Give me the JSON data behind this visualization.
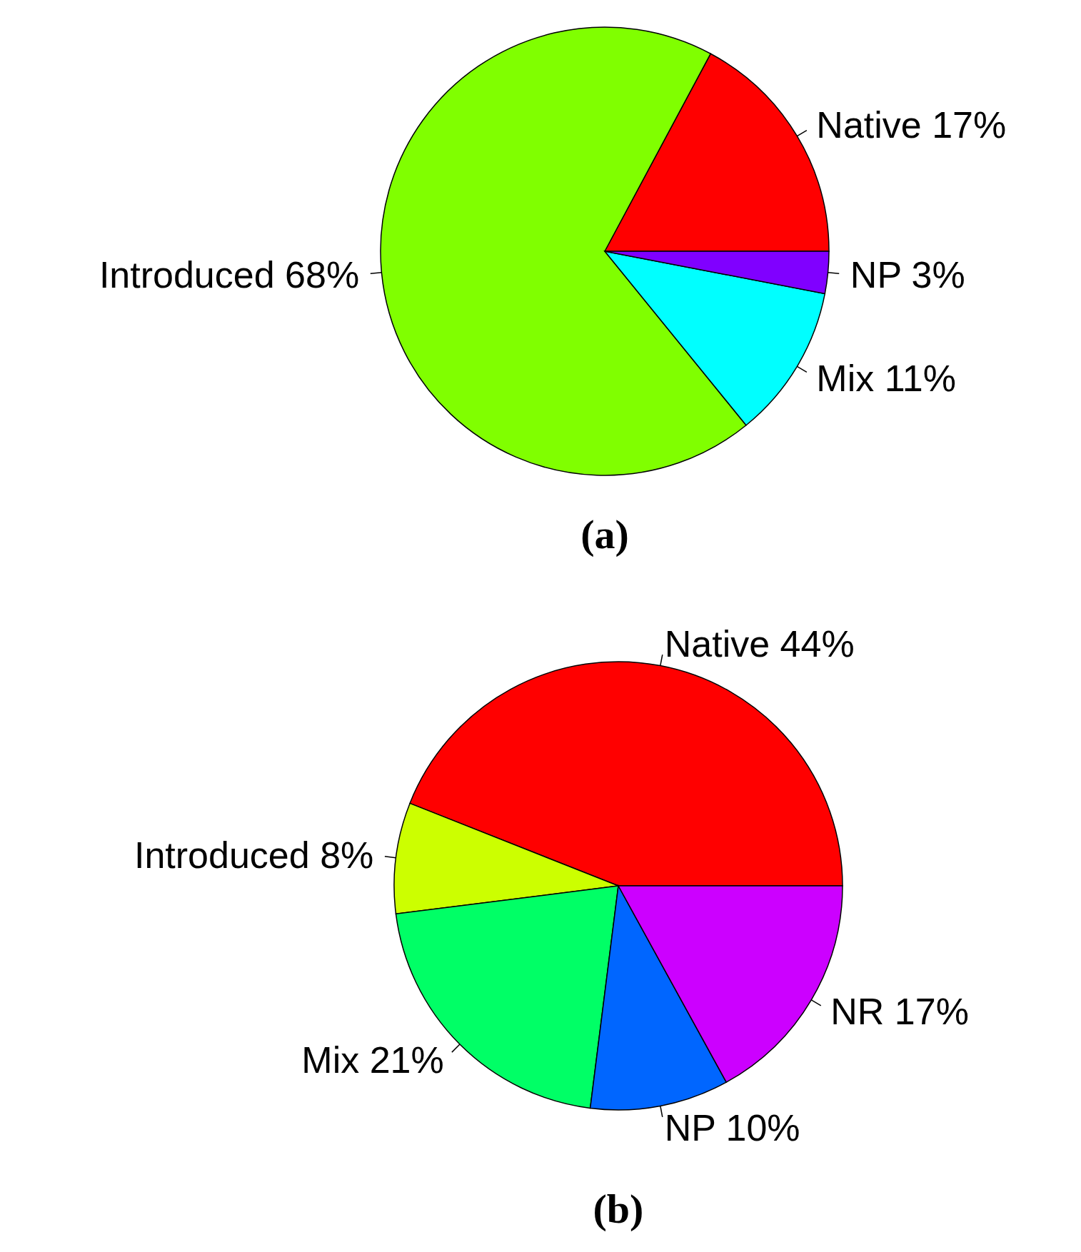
{
  "chart_data": [
    {
      "type": "pie",
      "title": "(a)",
      "categories": [
        "Native",
        "Introduced",
        "Mix",
        "NP"
      ],
      "values": [
        17,
        68,
        11,
        3
      ],
      "value_labels": [
        "17%",
        "68%",
        "11%",
        "3%"
      ],
      "colors": [
        "#ff0000",
        "#80ff00",
        "#00ffff",
        "#8000ff"
      ]
    },
    {
      "type": "pie",
      "title": "(b)",
      "categories": [
        "Native",
        "Introduced",
        "Mix",
        "NP",
        "NR"
      ],
      "values": [
        44,
        8,
        21,
        10,
        17
      ],
      "value_labels": [
        "44%",
        "8%",
        "21%",
        "10%",
        "17%"
      ],
      "colors": [
        "#ff0000",
        "#ccff00",
        "#00ff66",
        "#0066ff",
        "#cc00ff"
      ]
    }
  ]
}
